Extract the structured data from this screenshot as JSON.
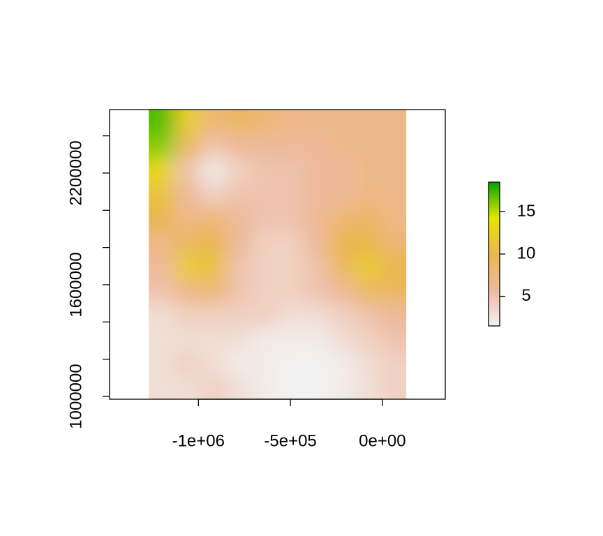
{
  "chart_data": {
    "type": "heatmap",
    "x": [
      -1200000,
      -1060000,
      -920000,
      -780000,
      -640000,
      -500000,
      -360000,
      -220000,
      -80000,
      60000
    ],
    "y": [
      2475000,
      2345000,
      2215000,
      2085000,
      1955000,
      1825000,
      1695000,
      1565000,
      1435000,
      1305000,
      1175000,
      1045000
    ],
    "z": [
      [
        17,
        12,
        8,
        9,
        8,
        7,
        7,
        7,
        7,
        7
      ],
      [
        16,
        9,
        5,
        6,
        6,
        6,
        6,
        7,
        7,
        7
      ],
      [
        13,
        5,
        2,
        4,
        5,
        5,
        6,
        6,
        7,
        7
      ],
      [
        11,
        6,
        4,
        5,
        5,
        5,
        6,
        6,
        7,
        7
      ],
      [
        10,
        7,
        8,
        6,
        5,
        5,
        6,
        8,
        9,
        7
      ],
      [
        7,
        9,
        10,
        6,
        4,
        4,
        6,
        10,
        10,
        8
      ],
      [
        6,
        12,
        11,
        5,
        4,
        4,
        5,
        9,
        12,
        10
      ],
      [
        5,
        7,
        8,
        5,
        4,
        4,
        5,
        6,
        9,
        9
      ],
      [
        3,
        4,
        4,
        4,
        4,
        3,
        3,
        4,
        5,
        6
      ],
      [
        3,
        3,
        3,
        3,
        2,
        2,
        2,
        3,
        4,
        5
      ],
      [
        3,
        4,
        3,
        2,
        2,
        1.5,
        1.5,
        2,
        3,
        4
      ],
      [
        3,
        3,
        4,
        3,
        2,
        1.5,
        1.5,
        2,
        3,
        4
      ]
    ],
    "xlim": [
      -1483000,
      342000
    ],
    "xticks": [
      {
        "value": -1000000,
        "label": "-1e+06"
      },
      {
        "value": -500000,
        "label": "-5e+05"
      },
      {
        "value": 0,
        "label": "0e+00"
      }
    ],
    "ylim": [
      985000,
      2541000
    ],
    "yticks": [
      1000000,
      {
        "value": 1200000,
        "label": null
      },
      {
        "value": 1400000,
        "label": null
      },
      1600000,
      {
        "value": 1800000,
        "label": null
      },
      {
        "value": 2000000,
        "label": null
      },
      2200000,
      {
        "value": 2400000,
        "label": null
      }
    ],
    "zlim": [
      1.5,
      18.5
    ],
    "zticks": [
      5,
      10,
      15
    ],
    "colors": [
      "#F2F2F2",
      "#EEB99F",
      "#EAB64E",
      "#E6E600",
      "#00A600"
    ]
  }
}
